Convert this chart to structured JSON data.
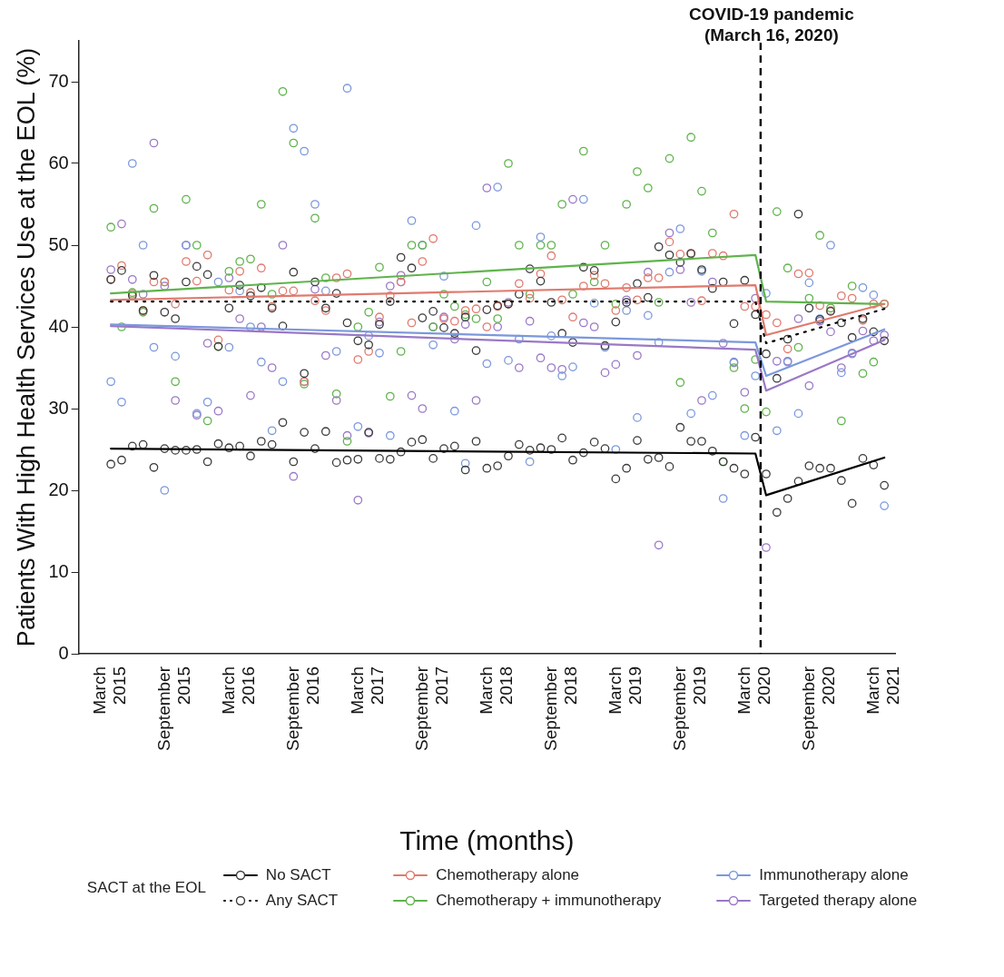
{
  "chart_data": {
    "type": "scatter",
    "xlabel": "Time (months)",
    "ylabel": "Patients With High Health Services Use at the EOL (%)",
    "legend_title": "SACT at the EOL",
    "legend": "bottom",
    "marker": "circle",
    "x": [
      "2015-03",
      "2015-04",
      "2015-05",
      "2015-06",
      "2015-07",
      "2015-08",
      "2015-09",
      "2015-10",
      "2015-11",
      "2015-12",
      "2016-01",
      "2016-02",
      "2016-03",
      "2016-04",
      "2016-05",
      "2016-06",
      "2016-07",
      "2016-08",
      "2016-09",
      "2016-10",
      "2016-11",
      "2016-12",
      "2017-01",
      "2017-02",
      "2017-03",
      "2017-04",
      "2017-05",
      "2017-06",
      "2017-07",
      "2017-08",
      "2017-09",
      "2017-10",
      "2017-11",
      "2017-12",
      "2018-01",
      "2018-02",
      "2018-03",
      "2018-04",
      "2018-05",
      "2018-06",
      "2018-07",
      "2018-08",
      "2018-09",
      "2018-10",
      "2018-11",
      "2018-12",
      "2019-01",
      "2019-02",
      "2019-03",
      "2019-04",
      "2019-05",
      "2019-06",
      "2019-07",
      "2019-08",
      "2019-09",
      "2019-10",
      "2019-11",
      "2019-12",
      "2020-01",
      "2020-02",
      "2020-03",
      "2020-04",
      "2020-05",
      "2020-06",
      "2020-07",
      "2020-08",
      "2020-09",
      "2020-10",
      "2020-11",
      "2020-12",
      "2021-01",
      "2021-02",
      "2021-03"
    ],
    "xlim": [
      "2014-12",
      "2021-04"
    ],
    "xticks": [
      {
        "value": "2015-03",
        "label": "March 2015"
      },
      {
        "value": "2015-09",
        "label": "September 2015"
      },
      {
        "value": "2016-03",
        "label": "March 2016"
      },
      {
        "value": "2016-09",
        "label": "September 2016"
      },
      {
        "value": "2017-03",
        "label": "March 2017"
      },
      {
        "value": "2017-09",
        "label": "September 2017"
      },
      {
        "value": "2018-03",
        "label": "March 2018"
      },
      {
        "value": "2018-09",
        "label": "September 2018"
      },
      {
        "value": "2019-03",
        "label": "March 2019"
      },
      {
        "value": "2019-09",
        "label": "September 2019"
      },
      {
        "value": "2020-03",
        "label": "March 2020"
      },
      {
        "value": "2020-09",
        "label": "September 2020"
      },
      {
        "value": "2021-03",
        "label": "March 2021"
      }
    ],
    "ylim": [
      0,
      75
    ],
    "yticks": [
      0,
      10,
      20,
      30,
      40,
      50,
      60,
      70
    ],
    "ref_lines": [
      {
        "axis": "x",
        "value": "2020-03-16",
        "label": "COVID-19 pandemic (March 16, 2020)",
        "color": "#000000",
        "line_style": "dashed"
      }
    ],
    "series": [
      {
        "name": "No SACT",
        "color": "#3a3a3a",
        "values": [
          23.2,
          23.7,
          25.4,
          25.6,
          22.8,
          25.1,
          24.9,
          24.9,
          25.0,
          23.5,
          25.7,
          25.2,
          25.4,
          24.2,
          26.0,
          25.6,
          28.3,
          23.5,
          27.1,
          25.1,
          27.2,
          23.4,
          23.7,
          23.8,
          27.1,
          23.9,
          23.8,
          24.7,
          25.9,
          26.2,
          23.9,
          25.1,
          25.4,
          22.5,
          26.0,
          22.7,
          23.0,
          24.2,
          25.6,
          24.9,
          25.2,
          25.0,
          26.4,
          23.7,
          24.6,
          25.9,
          25.1,
          21.4,
          22.7,
          26.1,
          23.8,
          24.0,
          22.9,
          27.7,
          26.0,
          26.0,
          24.8,
          23.5,
          22.7,
          22.0,
          26.5,
          22.0,
          17.3,
          19.0,
          21.1,
          23.0,
          22.7,
          22.7,
          21.2,
          18.4,
          23.9,
          23.1,
          20.6
        ]
      },
      {
        "type": "line",
        "color": "#000000",
        "line_style": "solid",
        "marker": "none",
        "x": [
          "2015-03",
          "2020-03",
          "2020-04",
          "2021-03"
        ],
        "values": [
          25.1,
          24.5,
          19.4,
          24.0
        ]
      },
      {
        "name": "Any SACT",
        "color": "#3a3a3a",
        "values": [
          45.8,
          46.9,
          43.8,
          42.0,
          46.3,
          41.8,
          41.0,
          45.5,
          47.4,
          46.4,
          37.6,
          42.3,
          45.1,
          43.8,
          44.8,
          42.3,
          40.1,
          46.7,
          34.3,
          45.5,
          42.3,
          44.1,
          40.5,
          38.3,
          37.8,
          40.3,
          43.1,
          48.5,
          47.2,
          41.1,
          41.9,
          39.9,
          39.2,
          41.2,
          37.1,
          42.1,
          42.6,
          42.8,
          44.0,
          47.1,
          45.6,
          43.0,
          39.2,
          38.1,
          47.3,
          46.9,
          37.7,
          40.6,
          43.0,
          45.3,
          43.6,
          49.8,
          48.8,
          47.9,
          49.0,
          47.0,
          44.7,
          45.5,
          40.4,
          45.7,
          41.5,
          36.7,
          33.7,
          38.5,
          53.8,
          42.3,
          40.9,
          41.9,
          40.5,
          38.7,
          41.0,
          39.4,
          38.3
        ]
      },
      {
        "type": "line",
        "color": "#000000",
        "line_style": "dotted",
        "marker": "none",
        "x": [
          "2015-03",
          "2020-03",
          "2020-04",
          "2021-03"
        ],
        "values": [
          43.1,
          43.1,
          38.0,
          42.2
        ]
      },
      {
        "name": "Chemotherapy alone",
        "color": "#e07a6e",
        "values": [
          45.8,
          47.5,
          44.0,
          42.0,
          45.5,
          45.5,
          42.8,
          48.0,
          45.6,
          48.8,
          38.4,
          44.5,
          46.8,
          44.2,
          47.2,
          42.5,
          44.4,
          44.4,
          33.3,
          43.2,
          42.0,
          46.0,
          46.5,
          36.0,
          37.0,
          41.2,
          43.8,
          45.5,
          40.5,
          48.0,
          50.8,
          41.0,
          40.7,
          42.0,
          42.2,
          40.0,
          42.5,
          42.8,
          45.3,
          43.5,
          46.5,
          48.7,
          43.3,
          41.2,
          45.0,
          46.3,
          45.3,
          42.0,
          44.8,
          43.3,
          46.0,
          46.0,
          50.4,
          48.9,
          48.9,
          43.2,
          49.0,
          48.7,
          53.8,
          42.5,
          42.5,
          41.5,
          40.5,
          37.3,
          46.5,
          46.6,
          42.6,
          42.0,
          43.8,
          43.5,
          40.8,
          42.8,
          42.8
        ]
      },
      {
        "type": "line",
        "color": "#e07a6e",
        "line_style": "solid",
        "marker": "none",
        "x": [
          "2015-03",
          "2020-03",
          "2020-04",
          "2021-03"
        ],
        "values": [
          43.3,
          45.1,
          39.0,
          42.8
        ]
      },
      {
        "name": "Chemotherapy + immunotherapy",
        "color": "#5fb34c",
        "values": [
          52.2,
          40.0,
          44.2,
          41.8,
          54.5,
          45.5,
          33.3,
          55.6,
          50.0,
          28.5,
          37.6,
          46.8,
          48.0,
          48.3,
          55.0,
          44.0,
          68.8,
          62.5,
          33.0,
          53.3,
          46.0,
          31.8,
          26.0,
          40.0,
          41.8,
          47.3,
          31.5,
          37.0,
          50.0,
          50.0,
          40.0,
          44.0,
          42.5,
          41.5,
          41.0,
          45.5,
          41.0,
          60.0,
          50.0,
          44.0,
          50.0,
          50.0,
          55.0,
          44.0,
          61.5,
          45.5,
          50.0,
          42.8,
          55.0,
          59.0,
          57.0,
          43.0,
          60.6,
          33.2,
          63.2,
          56.6,
          51.5,
          23.5,
          35.0,
          30.0,
          36.0,
          29.6,
          54.1,
          47.2,
          37.5,
          43.5,
          51.2,
          42.3,
          28.5,
          45.0,
          34.3,
          35.7,
          42.8
        ]
      },
      {
        "type": "line",
        "color": "#5fb34c",
        "line_style": "solid",
        "marker": "none",
        "x": [
          "2015-03",
          "2020-03",
          "2020-04",
          "2021-03"
        ],
        "values": [
          44.1,
          48.8,
          43.1,
          42.8
        ]
      },
      {
        "name": "Immunotherapy alone",
        "color": "#7b98dc",
        "values": [
          33.3,
          30.8,
          60.0,
          50.0,
          37.5,
          20.0,
          36.4,
          50.0,
          29.4,
          30.8,
          45.5,
          37.5,
          44.4,
          40.0,
          35.7,
          27.3,
          33.3,
          64.3,
          61.5,
          55.0,
          44.4,
          37.0,
          69.2,
          27.8,
          38.9,
          36.8,
          26.7,
          45.5,
          53.0,
          50.0,
          37.8,
          46.2,
          29.7,
          23.3,
          52.4,
          35.5,
          57.1,
          35.9,
          38.5,
          23.5,
          51.0,
          38.9,
          34.0,
          35.1,
          55.6,
          42.9,
          37.5,
          25.0,
          42.0,
          28.9,
          41.4,
          38.1,
          46.7,
          52.0,
          29.4,
          46.8,
          31.6,
          19.0,
          35.7,
          26.7,
          34.0,
          44.1,
          27.3,
          35.7,
          29.4,
          45.4,
          41.0,
          50.0,
          34.4,
          36.7,
          44.8,
          43.9,
          18.1
        ]
      },
      {
        "type": "line",
        "color": "#7b98dc",
        "line_style": "solid",
        "marker": "none",
        "x": [
          "2015-03",
          "2020-03",
          "2020-04",
          "2021-03"
        ],
        "values": [
          40.3,
          38.1,
          34.0,
          39.7
        ]
      },
      {
        "name": "Targeted therapy alone",
        "color": "#9a78c6",
        "values": [
          47.0,
          52.6,
          45.8,
          44.0,
          62.5,
          45.0,
          31.0,
          50.0,
          29.2,
          38.0,
          29.7,
          46.0,
          41.0,
          31.6,
          40.0,
          35.0,
          50.0,
          21.7,
          33.3,
          44.6,
          36.5,
          31.0,
          26.7,
          18.8,
          27.0,
          40.6,
          45.0,
          46.3,
          31.6,
          30.0,
          40.0,
          41.2,
          38.5,
          40.3,
          31.0,
          57.0,
          40.0,
          43.0,
          35.0,
          40.7,
          36.2,
          35.0,
          34.8,
          55.6,
          40.5,
          40.0,
          34.4,
          35.4,
          43.3,
          36.5,
          46.7,
          13.3,
          51.5,
          47.0,
          43.0,
          31.0,
          45.5,
          38.0,
          35.6,
          32.0,
          43.5,
          13.0,
          35.8,
          35.8,
          41.0,
          32.8,
          40.7,
          39.4,
          35.0,
          36.8,
          39.5,
          38.3,
          39.0
        ]
      },
      {
        "type": "line",
        "color": "#9a78c6",
        "line_style": "solid",
        "marker": "none",
        "x": [
          "2015-03",
          "2020-03",
          "2020-04",
          "2021-03"
        ],
        "values": [
          40.1,
          37.2,
          32.2,
          38.4
        ]
      }
    ]
  }
}
